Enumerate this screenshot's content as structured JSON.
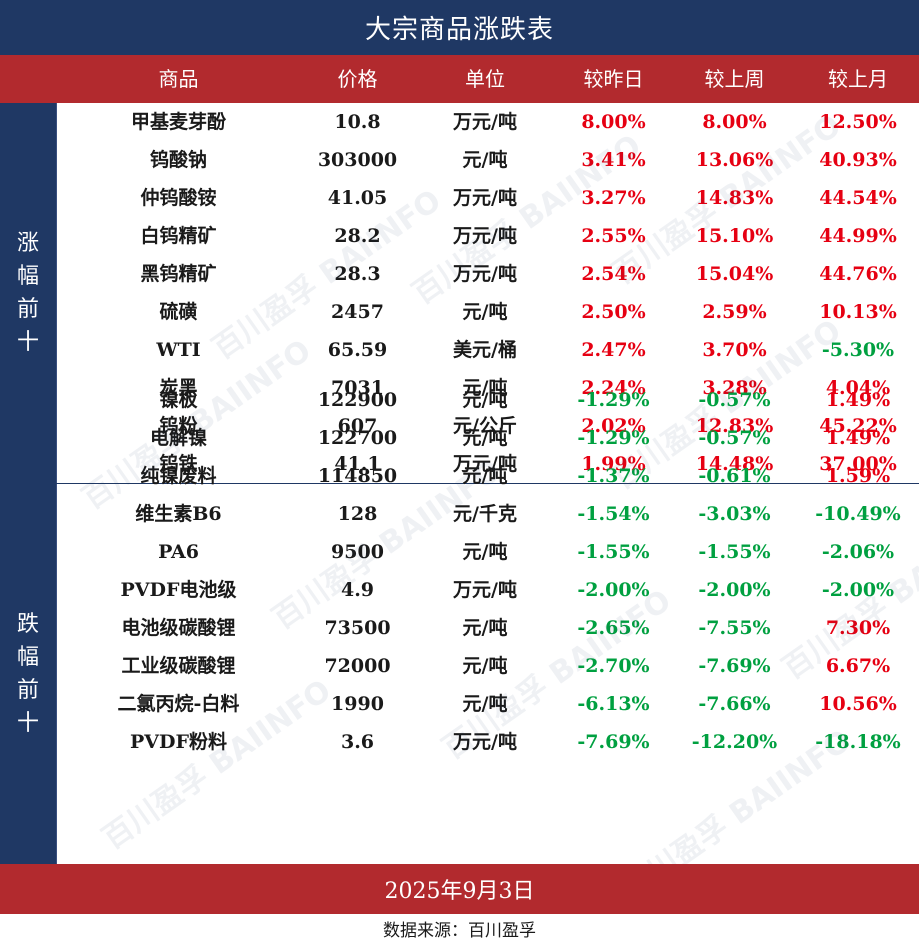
{
  "title": "大宗商品涨跌表",
  "headers": [
    "商品",
    "价格",
    "单位",
    "较昨日",
    "较上周",
    "较上月"
  ],
  "groups": {
    "up_label": "涨幅前十",
    "down_label": "跌幅前十"
  },
  "up_rows": [
    {
      "name": "甲基麦芽酚",
      "price": "10.8",
      "unit": "万元/吨",
      "day": "8.00%",
      "week": "8.00%",
      "month": "12.50%",
      "month_sign": "pos"
    },
    {
      "name": "钨酸钠",
      "price": "303000",
      "unit": "元/吨",
      "day": "3.41%",
      "week": "13.06%",
      "month": "40.93%",
      "month_sign": "pos"
    },
    {
      "name": "仲钨酸铵",
      "price": "41.05",
      "unit": "万元/吨",
      "day": "3.27%",
      "week": "14.83%",
      "month": "44.54%",
      "month_sign": "pos"
    },
    {
      "name": "白钨精矿",
      "price": "28.2",
      "unit": "万元/吨",
      "day": "2.55%",
      "week": "15.10%",
      "month": "44.99%",
      "month_sign": "pos"
    },
    {
      "name": "黑钨精矿",
      "price": "28.3",
      "unit": "万元/吨",
      "day": "2.54%",
      "week": "15.04%",
      "month": "44.76%",
      "month_sign": "pos"
    },
    {
      "name": "硫磺",
      "price": "2457",
      "unit": "元/吨",
      "day": "2.50%",
      "week": "2.59%",
      "month": "10.13%",
      "month_sign": "pos"
    },
    {
      "name": "WTI",
      "price": "65.59",
      "unit": "美元/桶",
      "day": "2.47%",
      "week": "3.70%",
      "month": "-5.30%",
      "month_sign": "neg"
    },
    {
      "name": "炭黑",
      "price": "7031",
      "unit": "元/吨",
      "day": "2.24%",
      "week": "3.28%",
      "month": "4.04%",
      "month_sign": "pos"
    },
    {
      "name": "钨粉",
      "price": "607",
      "unit": "元/公斤",
      "day": "2.02%",
      "week": "12.83%",
      "month": "45.22%",
      "month_sign": "pos"
    },
    {
      "name": "钨铁",
      "price": "41.1",
      "unit": "万元/吨",
      "day": "1.99%",
      "week": "14.48%",
      "month": "37.00%",
      "month_sign": "pos"
    }
  ],
  "down_rows": [
    {
      "name": "镍板",
      "price": "122900",
      "unit": "元/吨",
      "day": "-1.29%",
      "week": "-0.57%",
      "month": "1.49%",
      "month_sign": "pos"
    },
    {
      "name": "电解镍",
      "price": "122700",
      "unit": "元/吨",
      "day": "-1.29%",
      "week": "-0.57%",
      "month": "1.49%",
      "month_sign": "pos"
    },
    {
      "name": "纯镍废料",
      "price": "114850",
      "unit": "元/吨",
      "day": "-1.37%",
      "week": "-0.61%",
      "month": "1.59%",
      "month_sign": "pos"
    },
    {
      "name": "维生素B6",
      "price": "128",
      "unit": "元/千克",
      "day": "-1.54%",
      "week": "-3.03%",
      "month": "-10.49%",
      "month_sign": "neg"
    },
    {
      "name": "PA6",
      "price": "9500",
      "unit": "元/吨",
      "day": "-1.55%",
      "week": "-1.55%",
      "month": "-2.06%",
      "month_sign": "neg"
    },
    {
      "name": "PVDF电池级",
      "price": "4.9",
      "unit": "万元/吨",
      "day": "-2.00%",
      "week": "-2.00%",
      "month": "-2.00%",
      "month_sign": "neg"
    },
    {
      "name": "电池级碳酸锂",
      "price": "73500",
      "unit": "元/吨",
      "day": "-2.65%",
      "week": "-7.55%",
      "month": "7.30%",
      "month_sign": "pos"
    },
    {
      "name": "工业级碳酸锂",
      "price": "72000",
      "unit": "元/吨",
      "day": "-2.70%",
      "week": "-7.69%",
      "month": "6.67%",
      "month_sign": "pos"
    },
    {
      "name": "二氯丙烷-白料",
      "price": "1990",
      "unit": "元/吨",
      "day": "-6.13%",
      "week": "-7.66%",
      "month": "10.56%",
      "month_sign": "pos"
    },
    {
      "name": "PVDF粉料",
      "price": "3.6",
      "unit": "万元/吨",
      "day": "-7.69%",
      "week": "-12.20%",
      "month": "-18.18%",
      "month_sign": "neg"
    }
  ],
  "footer": {
    "date": "2025年9月3日",
    "source": "数据来源：百川盈孚"
  },
  "watermark": "百川盈孚 BAIINFO",
  "colors": {
    "navy": "#1f3864",
    "red_band": "#b22a2e",
    "up": "#e60012",
    "down": "#00a040"
  }
}
